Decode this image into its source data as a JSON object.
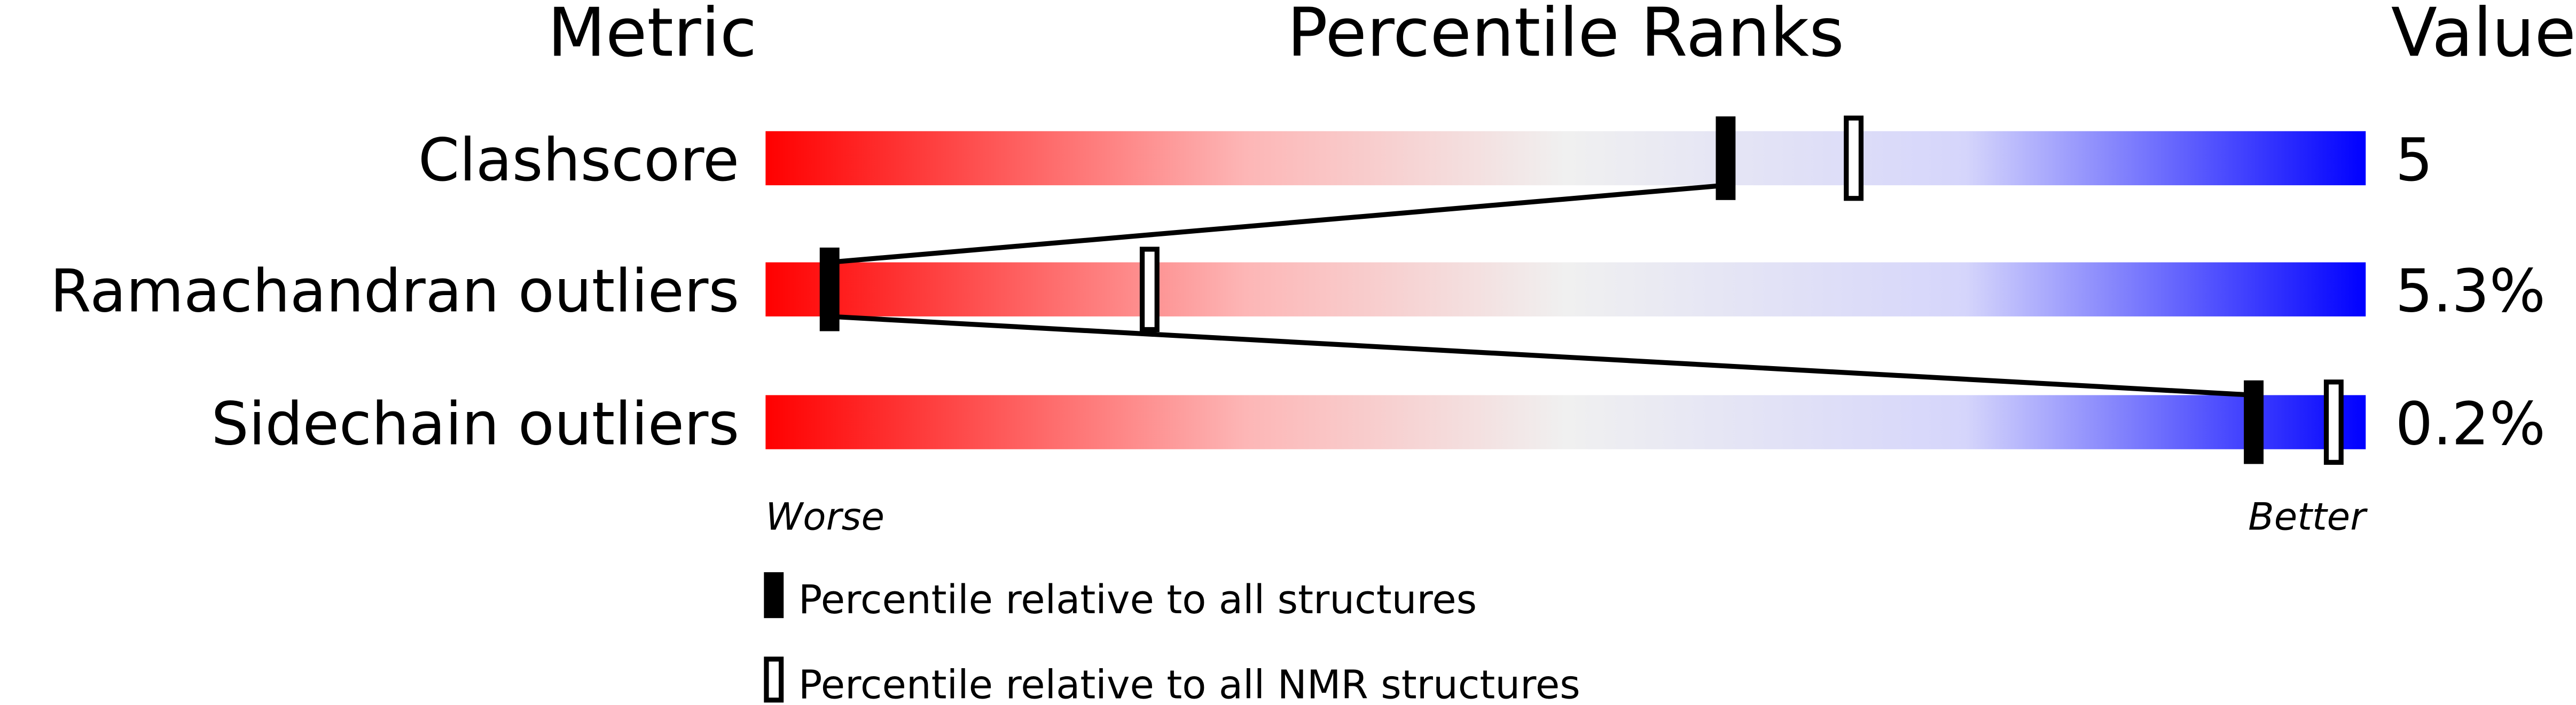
{
  "chart_data": {
    "type": "percentile-bar",
    "headers": {
      "metric": "Metric",
      "ranks": "Percentile Ranks",
      "value": "Value"
    },
    "xlim": [
      0,
      100
    ],
    "axis_labels": {
      "left": "Worse",
      "right": "Better"
    },
    "gradient_colors": [
      "#ff0000",
      "#f0f0f0",
      "#dcdcfa",
      "#0000ff"
    ],
    "rows": [
      {
        "metric": "Clashscore",
        "value": "5",
        "percentile_all": 60,
        "percentile_nmr": 68
      },
      {
        "metric": "Ramachandran outliers",
        "value": "5.3%",
        "percentile_all": 4,
        "percentile_nmr": 24
      },
      {
        "metric": "Sidechain outliers",
        "value": "0.2%",
        "percentile_all": 93,
        "percentile_nmr": 98
      }
    ],
    "legend": [
      {
        "marker": "filled",
        "label": "Percentile relative to all structures"
      },
      {
        "marker": "hollow",
        "label": "Percentile relative to all NMR structures"
      }
    ]
  }
}
